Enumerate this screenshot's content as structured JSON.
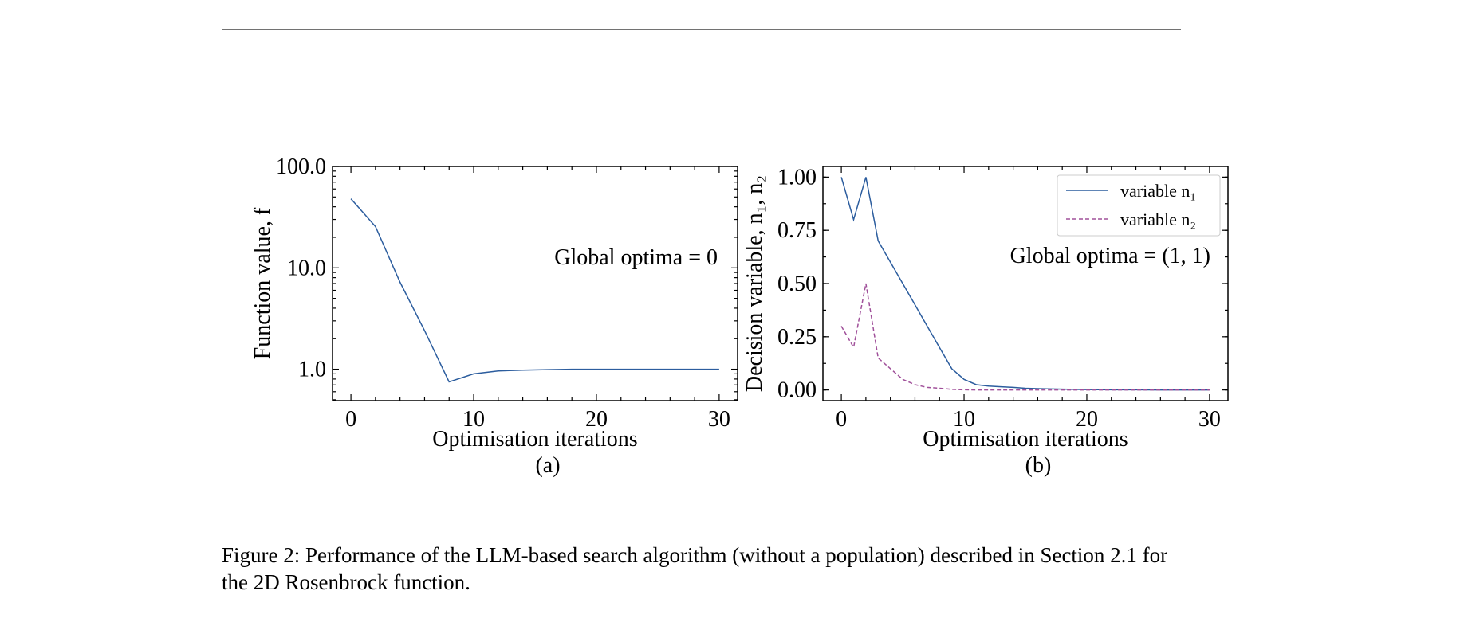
{
  "charts_meta": {
    "a_label": "(a)",
    "b_label": "(b)"
  },
  "caption": "Figure 2: Performance of the LLM-based search algorithm (without a population) described in Section 2.1 for the 2D Rosenbrock function.",
  "chart_data": [
    {
      "type": "line",
      "xlabel": "Optimisation iterations",
      "ylabel": "Function value, f",
      "yscale": "log",
      "xlim": [
        -1.5,
        31.5
      ],
      "ylim": [
        0.49,
        100
      ],
      "xticks": [
        0,
        10,
        20,
        30
      ],
      "xtick_labels": [
        "0",
        "10",
        "20",
        "30"
      ],
      "yticks": [
        1,
        10,
        100
      ],
      "ytick_labels": [
        "1.0",
        "10.0",
        "100.0"
      ],
      "annotation": "Global optima = 0",
      "grid": false,
      "color": "#2c5d9e",
      "x": [
        0,
        2,
        4,
        6,
        8,
        10,
        12,
        14,
        16,
        18,
        20,
        22,
        24,
        26,
        28,
        30
      ],
      "y": [
        48,
        25.5,
        7.2,
        2.4,
        0.75,
        0.9,
        0.96,
        0.98,
        0.99,
        1.0,
        1.0,
        1.0,
        1.0,
        1.0,
        1.0,
        1.0
      ]
    },
    {
      "type": "line",
      "xlabel": "Optimisation iterations",
      "ylabel": "Decision variable, n₁, n₂",
      "xlim": [
        -1.5,
        31.5
      ],
      "ylim": [
        -0.05,
        1.05
      ],
      "xticks": [
        0,
        10,
        20,
        30
      ],
      "xtick_labels": [
        "0",
        "10",
        "20",
        "30"
      ],
      "yticks": [
        0,
        0.25,
        0.5,
        0.75,
        1.0
      ],
      "ytick_labels": [
        "0.00",
        "0.25",
        "0.50",
        "0.75",
        "1.00"
      ],
      "annotation": "Global optima = (1, 1)",
      "legend_position": "top-right",
      "grid": false,
      "x": [
        0,
        1,
        2,
        3,
        4,
        5,
        6,
        7,
        8,
        9,
        10,
        11,
        12,
        13,
        14,
        15,
        16,
        18,
        20,
        22,
        24,
        26,
        28,
        30
      ],
      "series": [
        {
          "name": "variable n₁",
          "color": "#2c5d9e",
          "dash": "solid",
          "values": [
            1.0,
            0.8,
            1.0,
            0.7,
            0.6,
            0.5,
            0.4,
            0.3,
            0.2,
            0.1,
            0.05,
            0.025,
            0.018,
            0.015,
            0.012,
            0.008,
            0.006,
            0.004,
            0.002,
            0.001,
            0.001,
            0.0,
            0.0,
            0.0
          ]
        },
        {
          "name": "variable n₂",
          "color": "#a0509a",
          "dash": "dashed",
          "values": [
            0.3,
            0.2,
            0.5,
            0.15,
            0.1,
            0.05,
            0.025,
            0.012,
            0.008,
            0.003,
            0.001,
            0.0,
            0.0,
            0.0,
            0.0,
            0.0,
            0.0,
            0.0,
            0.0,
            0.0,
            0.0,
            0.0,
            0.0,
            0.0
          ]
        }
      ]
    }
  ]
}
